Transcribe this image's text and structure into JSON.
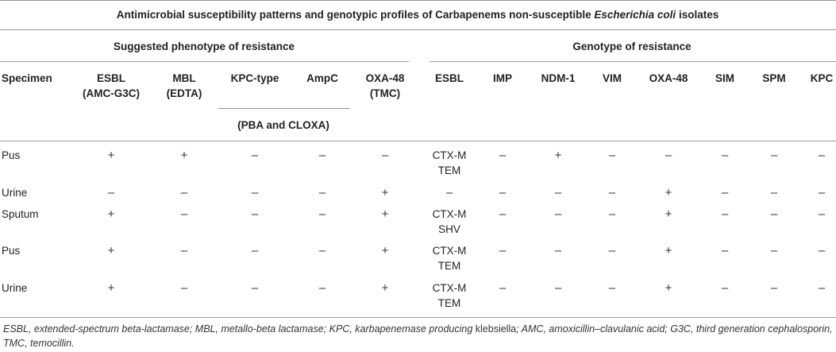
{
  "title": {
    "prefix": "Antimicrobial susceptibility patterns and genotypic profiles of Carbapenems non-susceptible ",
    "organism": "Escherichia coli",
    "suffix": " isolates"
  },
  "groups": {
    "phenotype": "Suggested phenotype of resistance",
    "genotype": "Genotype of resistance"
  },
  "columns": {
    "specimen": "Specimen",
    "esbl_pheno_1": "ESBL",
    "esbl_pheno_2": "(AMC-G3C)",
    "mbl_1": "MBL",
    "mbl_2": "(EDTA)",
    "kpc_type": "KPC-type",
    "ampc": "AmpC",
    "oxa48_pheno_1": "OXA-48",
    "oxa48_pheno_2": "(TMC)",
    "pba_cloxa": "(PBA and CLOXA)",
    "esbl_geno": "ESBL",
    "imp": "IMP",
    "ndm1": "NDM-1",
    "vim": "VIM",
    "oxa48_geno": "OXA-48",
    "sim": "SIM",
    "spm": "SPM",
    "kpc": "KPC"
  },
  "rows": [
    {
      "specimen": "Pus",
      "cells": [
        "+",
        "+",
        "–",
        "–",
        "–"
      ],
      "esbl": [
        "CTX-M",
        "TEM"
      ],
      "geno": [
        "–",
        "+",
        "–",
        "–",
        "–",
        "–",
        "–"
      ]
    },
    {
      "specimen": "Urine",
      "cells": [
        "–",
        "–",
        "–",
        "–",
        "+"
      ],
      "esbl": [
        "–"
      ],
      "geno": [
        "–",
        "–",
        "–",
        "+",
        "–",
        "–",
        "–"
      ]
    },
    {
      "specimen": "Sputum",
      "cells": [
        "+",
        "–",
        "–",
        "–",
        "+"
      ],
      "esbl": [
        "CTX-M",
        "SHV"
      ],
      "geno": [
        "–",
        "–",
        "–",
        "+",
        "–",
        "–",
        "–"
      ]
    },
    {
      "specimen": "Pus",
      "cells": [
        "+",
        "–",
        "–",
        "–",
        "+"
      ],
      "esbl": [
        "CTX-M",
        "TEM"
      ],
      "geno": [
        "–",
        "–",
        "–",
        "+",
        "–",
        "–",
        "–"
      ]
    },
    {
      "specimen": "Urine",
      "cells": [
        "+",
        "–",
        "–",
        "–",
        "+"
      ],
      "esbl": [
        "CTX-M",
        "TEM"
      ],
      "geno": [
        "–",
        "–",
        "–",
        "+",
        "–",
        "–",
        "–"
      ]
    }
  ],
  "footnote": {
    "main": "ESBL, extended-spectrum beta-lactamase; MBL, metallo-beta lactamase; KPC, karbapenemase producing ",
    "upright": "klebsiella",
    "tail": "; AMC, amoxicillin–clavulanic acid; G3C, third generation cephalosporin, TMC, temocillin."
  }
}
